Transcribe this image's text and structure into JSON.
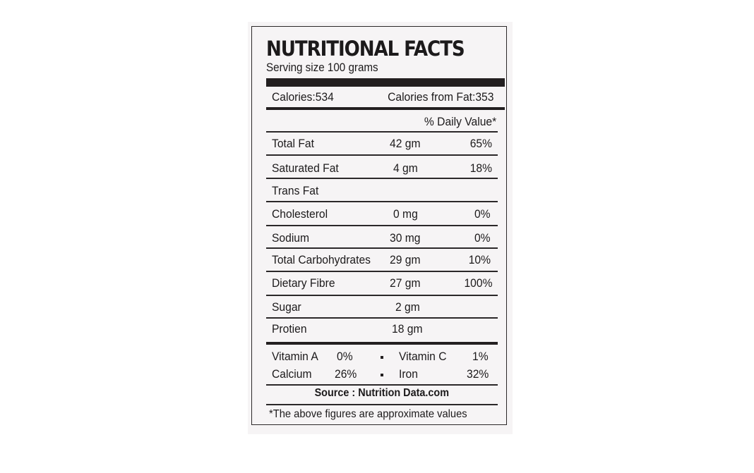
{
  "label": {
    "title": "NUTRITIONAL FACTS",
    "serving": "Serving size 100 grams",
    "calories": "Calories:534",
    "calories_fat": "Calories from Fat:353",
    "daily_value_header": "% Daily Value*",
    "rows": [
      {
        "name": "Total Fat",
        "amount": "42 gm",
        "percent": "65%"
      },
      {
        "name": "Saturated Fat",
        "amount": "4 gm",
        "percent": "18%"
      },
      {
        "name": "Trans Fat",
        "amount": "",
        "percent": ""
      },
      {
        "name": "Cholesterol",
        "amount": "0 mg",
        "percent": "0%"
      },
      {
        "name": "Sodium",
        "amount": "30 mg",
        "percent": "0%"
      },
      {
        "name": "Total Carbohydrates",
        "amount": "29 gm",
        "percent": "10%"
      },
      {
        "name": "Dietary Fibre",
        "amount": "27 gm",
        "percent": "100%"
      },
      {
        "name": "Sugar",
        "amount": "2 gm",
        "percent": ""
      },
      {
        "name": "Protien",
        "amount": "18 gm",
        "percent": ""
      }
    ],
    "vitamins": {
      "vitamin_a_label": "Vitamin A",
      "vitamin_a_value": "0%",
      "vitamin_c_label": "Vitamin C",
      "vitamin_c_value": "1%",
      "calcium_label": "Calcium",
      "calcium_value": "26%",
      "iron_label": "Iron",
      "iron_value": "32%"
    },
    "source": "Source : Nutrition Data.com",
    "footnote": "*The above figures are approximate values"
  }
}
